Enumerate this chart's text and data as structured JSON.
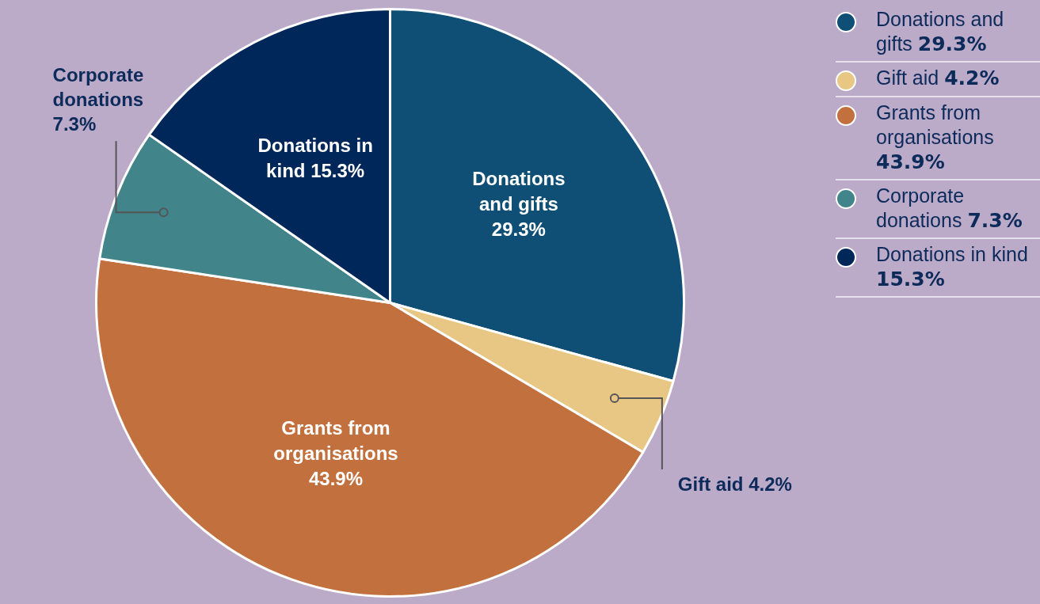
{
  "chart_data": {
    "type": "pie",
    "categories": [
      "Donations and gifts",
      "Gift aid",
      "Grants from organisations",
      "Corporate donations",
      "Donations in kind"
    ],
    "values": [
      29.3,
      4.2,
      43.9,
      7.3,
      15.3
    ],
    "value_labels": [
      "29.3%",
      "4.2%",
      "43.9%",
      "7.3%",
      "15.3%"
    ],
    "colors": [
      "#0f4e75",
      "#e8c785",
      "#c2703d",
      "#41858a",
      "#00275a"
    ],
    "legend": "right"
  }
}
